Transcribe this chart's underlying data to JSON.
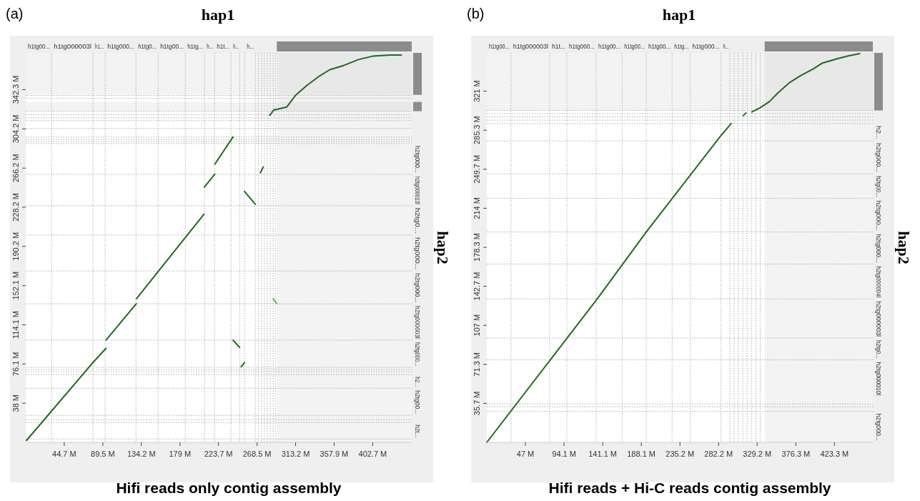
{
  "chart_data": [
    {
      "type": "line",
      "title": "hap1",
      "ylabel": "hap2",
      "subtitle": "Hifi reads only contig assembly",
      "annotations": [
        "(a)",
        "h1tg00..."
      ],
      "xlim": [
        0,
        448
      ],
      "ylim": [
        0,
        378
      ],
      "xticks": [
        {
          "value": 44.7,
          "label": "44.7 M"
        },
        {
          "value": 89.5,
          "label": "89.5 M"
        },
        {
          "value": 134.2,
          "label": "134.2 M"
        },
        {
          "value": 179,
          "label": "179 M"
        },
        {
          "value": 223.7,
          "label": "223.7 M"
        },
        {
          "value": 268.5,
          "label": "268.5 M"
        },
        {
          "value": 313.2,
          "label": "313.2 M"
        },
        {
          "value": 357.9,
          "label": "357.9 M"
        },
        {
          "value": 402.7,
          "label": "402.7 M"
        }
      ],
      "yticks": [
        {
          "value": 38,
          "label": "38 M"
        },
        {
          "value": 76.1,
          "label": "76.1 M"
        },
        {
          "value": 114.1,
          "label": "114.1 M"
        },
        {
          "value": 152.1,
          "label": "152.1 M"
        },
        {
          "value": 190.2,
          "label": "190.2 M"
        },
        {
          "value": 228.2,
          "label": "228.2 M"
        },
        {
          "value": 266.2,
          "label": "266.2 M"
        },
        {
          "value": 304.2,
          "label": "304.2 M"
        },
        {
          "value": 342.3,
          "label": "342.3 M"
        }
      ],
      "series": [
        {
          "color": "#1e6b1e",
          "x": [
            0.9,
            78,
            93.2
          ],
          "values": [
            1.9,
            77.5,
            91.4
          ]
        },
        {
          "color": "#1e6b1e",
          "x": [
            93.2,
            128.4
          ],
          "values": [
            99.2,
            134.7
          ]
        },
        {
          "color": "#1e6b1e",
          "x": [
            128.4,
            206.8
          ],
          "values": [
            139.4,
            221.4
          ]
        },
        {
          "color": "#1e6b1e",
          "x": [
            207.4,
            219.4
          ],
          "values": [
            247.8,
            260.3
          ]
        },
        {
          "color": "#1e6b1e",
          "x": [
            219.4,
            240.6
          ],
          "values": [
            270,
            296.4
          ]
        },
        {
          "color": "#1e6b1e",
          "x": [
            253.9,
            266.5
          ],
          "values": [
            243.6,
            231.1
          ]
        },
        {
          "color": "#1e6b1e",
          "x": [
            272.3,
            275.6
          ],
          "values": [
            261.7,
            267.2
          ]
        },
        {
          "color": "#1e6b1e",
          "x": [
            240.6,
            248.3
          ],
          "values": [
            99.2,
            92.2
          ]
        },
        {
          "color": "#1e6b1e",
          "x": [
            250,
            253.9
          ],
          "values": [
            73.3,
            77.5
          ]
        },
        {
          "color": "#5cbf3c",
          "x": [
            287.1,
            291.4
          ],
          "values": [
            139.4,
            134.7
          ]
        },
        {
          "color": "#1e6b1e",
          "x": [
            283.1,
            288.1,
            289.8,
            303,
            313,
            326.3,
            339.6,
            352.9,
            369.5,
            386,
            402.6,
            422.5,
            435.8
          ],
          "values": [
            317.3,
            322.8,
            322.8,
            325.5,
            336.7,
            346.4,
            354.8,
            361.7,
            365.9,
            371.5,
            374.8,
            376,
            376
          ]
        }
      ],
      "ref_lines": [
        {
          "axis": "x",
          "value": 30,
          "label": "h1tg000003l",
          "line_style": "dotted",
          "color": "#999999"
        },
        {
          "axis": "x",
          "value": 78,
          "label": "h1...",
          "line_style": "dotted",
          "color": "#999999"
        },
        {
          "axis": "x",
          "value": 92.2,
          "label": "h1tg000...",
          "line_style": "dotted",
          "color": "#999999"
        },
        {
          "axis": "x",
          "value": 127.9,
          "label": "h1tg0...",
          "line_style": "dotted",
          "color": "#999999"
        },
        {
          "axis": "x",
          "value": 153.6,
          "label": "h1tg00...",
          "line_style": "dotted",
          "color": "#999999"
        },
        {
          "axis": "x",
          "value": 185.2,
          "label": "h1tg...",
          "line_style": "dotted",
          "color": "#999999"
        },
        {
          "axis": "x",
          "value": 207.6,
          "label": "h...",
          "line_style": "dotted",
          "color": "#999999"
        },
        {
          "axis": "x",
          "value": 219.2,
          "label": "h1t...",
          "line_style": "dotted",
          "color": "#999999"
        },
        {
          "axis": "x",
          "value": 238.3,
          "label": "h...",
          "line_style": "dotted",
          "color": "#999999"
        },
        {
          "axis": "x",
          "value": 248.3,
          "line_style": "dotted",
          "color": "#999999"
        },
        {
          "axis": "x",
          "value": 254,
          "label": "h...",
          "line_style": "dotted",
          "color": "#999999"
        },
        {
          "axis": "x",
          "value": 266.5,
          "line_style": "dotted",
          "color": "#999999"
        },
        {
          "axis": "x",
          "value": 270,
          "line_style": "dotted",
          "color": "#999999"
        },
        {
          "axis": "x",
          "value": 273.8,
          "line_style": "dotted",
          "color": "#999999"
        },
        {
          "axis": "x",
          "value": 277,
          "line_style": "dotted",
          "color": "#999999"
        },
        {
          "axis": "x",
          "value": 280.5,
          "line_style": "dotted",
          "color": "#999999"
        },
        {
          "axis": "x",
          "value": 283.8,
          "line_style": "dotted",
          "color": "#999999"
        },
        {
          "axis": "x",
          "value": 287.1,
          "line_style": "dotted",
          "color": "#999999"
        },
        {
          "axis": "x",
          "value": 289.8,
          "line_style": "dotted",
          "color": "#999999"
        },
        {
          "axis": "y",
          "value": 3.3,
          "label": "h2t...",
          "line_style": "dotted",
          "color": "#999999"
        },
        {
          "axis": "y",
          "value": 19.3,
          "line_style": "dotted",
          "color": "#999999"
        },
        {
          "axis": "y",
          "value": 22,
          "line_style": "dotted",
          "color": "#999999"
        },
        {
          "axis": "y",
          "value": 26.2,
          "label": "h2tg00...",
          "line_style": "dotted",
          "color": "#999999"
        },
        {
          "axis": "y",
          "value": 52.6,
          "label": "h2...",
          "line_style": "dotted",
          "color": "#999999"
        },
        {
          "axis": "y",
          "value": 65.8,
          "line_style": "dotted",
          "color": "#999999"
        },
        {
          "axis": "y",
          "value": 68.6,
          "line_style": "dotted",
          "color": "#999999"
        },
        {
          "axis": "y",
          "value": 70.7,
          "line_style": "dotted",
          "color": "#999999"
        },
        {
          "axis": "y",
          "value": 72.8,
          "label": "h2tg000...",
          "line_style": "dotted",
          "color": "#999999"
        },
        {
          "axis": "y",
          "value": 99.2,
          "label": "h2tg000003l",
          "line_style": "dotted",
          "color": "#999999"
        },
        {
          "axis": "y",
          "value": 134.5,
          "label": "h2tg000...",
          "line_style": "dotted",
          "color": "#999999"
        },
        {
          "axis": "y",
          "value": 166.4,
          "label": "h2tg000...",
          "line_style": "dotted",
          "color": "#999999"
        },
        {
          "axis": "y",
          "value": 201.2,
          "label": "h2tg0...",
          "line_style": "dotted",
          "color": "#999999"
        },
        {
          "axis": "y",
          "value": 229.7,
          "label": "h2tg000013l",
          "line_style": "dotted",
          "color": "#999999"
        },
        {
          "axis": "y",
          "value": 260.1,
          "label": "h2tg000...",
          "line_style": "dotted",
          "color": "#999999"
        },
        {
          "axis": "y",
          "value": 290,
          "line_style": "dotted",
          "color": "#999999"
        },
        {
          "axis": "y",
          "value": 292,
          "line_style": "dotted",
          "color": "#999999"
        },
        {
          "axis": "y",
          "value": 294,
          "line_style": "dotted",
          "color": "#999999"
        },
        {
          "axis": "y",
          "value": 296.3,
          "line_style": "dotted",
          "color": "#999999"
        },
        {
          "axis": "y",
          "value": 304.7,
          "line_style": "dotted",
          "color": "#999999"
        },
        {
          "axis": "y",
          "value": 312.3,
          "line_style": "dotted",
          "color": "#999999"
        },
        {
          "axis": "y",
          "value": 315,
          "line_style": "dotted",
          "color": "#999999"
        },
        {
          "axis": "y",
          "value": 318,
          "line_style": "dotted",
          "color": "#999999"
        },
        {
          "axis": "y",
          "value": 321.4,
          "line_style": "dotted",
          "color": "#999999"
        },
        {
          "axis": "y",
          "value": 333.9,
          "line_style": "dotted",
          "color": "#999999"
        },
        {
          "axis": "y",
          "value": 336.7,
          "line_style": "dotted",
          "color": "#999999"
        }
      ],
      "bands": [
        {
          "axis": "x",
          "from": 291.4,
          "to": 448,
          "color": "#8c8c8c"
        },
        {
          "axis": "y",
          "from": 337.3,
          "to": 378,
          "color": "#8c8c8c"
        },
        {
          "axis": "y",
          "from": 321.4,
          "to": 330.4,
          "color": "#8c8c8c"
        }
      ]
    },
    {
      "type": "line",
      "title": "hap1",
      "ylabel": "hap2",
      "subtitle": "Hifi reads + Hi-C reads contig assembly",
      "annotations": [
        "(b)",
        "h1tg00...",
        "h2tg000..."
      ],
      "xlim": [
        0,
        470
      ],
      "ylim": [
        0,
        356
      ],
      "xticks": [
        {
          "value": 47,
          "label": "47 M"
        },
        {
          "value": 94.1,
          "label": "94.1 M"
        },
        {
          "value": 141.1,
          "label": "141.1 M"
        },
        {
          "value": 188.1,
          "label": "188.1 M"
        },
        {
          "value": 235.2,
          "label": "235.2 M"
        },
        {
          "value": 282.2,
          "label": "282.2 M"
        },
        {
          "value": 329.2,
          "label": "329.2 M"
        },
        {
          "value": 376.3,
          "label": "376.3 M"
        },
        {
          "value": 423.3,
          "label": "423.3 M"
        }
      ],
      "yticks": [
        {
          "value": 35.7,
          "label": "35.7 M"
        },
        {
          "value": 71.3,
          "label": "71.3 M"
        },
        {
          "value": 107,
          "label": "107 M"
        },
        {
          "value": 142.7,
          "label": "142.7 M"
        },
        {
          "value": 178.3,
          "label": "178.3 M"
        },
        {
          "value": 214,
          "label": "214 M"
        },
        {
          "value": 249.7,
          "label": "249.7 M"
        },
        {
          "value": 285.3,
          "label": "285.3 M"
        },
        {
          "value": 321,
          "label": "321 M"
        }
      ],
      "series": [
        {
          "color": "#1e6b1e",
          "x": [
            0,
            134.5,
            194.1,
            285.1,
            297.6
          ],
          "values": [
            0,
            131.2,
            192.3,
            280.5,
            291.4
          ]
        },
        {
          "color": "#1e6b1e",
          "x": [
            312.2,
            315.7
          ],
          "values": [
            298.6,
            301.2
          ]
        },
        {
          "color": "#1e6b1e",
          "x": [
            322.8,
            333.4,
            344.1,
            354.7,
            368.9,
            383.1,
            397.2,
            408,
            425.7,
            439.9,
            454.1
          ],
          "values": [
            302,
            306.1,
            311.5,
            319.6,
            329,
            335.7,
            341.2,
            346.5,
            350.5,
            353.2,
            355.4
          ]
        }
      ],
      "ref_lines": [
        {
          "axis": "x",
          "value": 29.4,
          "label": "h1tg000003l",
          "line_style": "dotted",
          "color": "#999999"
        },
        {
          "axis": "x",
          "value": 76.5,
          "label": "h1t...",
          "line_style": "dotted",
          "color": "#999999"
        },
        {
          "axis": "x",
          "value": 97.4,
          "label": "h1tg000...",
          "line_style": "dotted",
          "color": "#999999"
        },
        {
          "axis": "x",
          "value": 133.2,
          "label": "h1tg00...",
          "line_style": "dotted",
          "color": "#999999"
        },
        {
          "axis": "x",
          "value": 164.7,
          "label": "h1tg00...",
          "line_style": "dotted",
          "color": "#999999"
        },
        {
          "axis": "x",
          "value": 194.1,
          "label": "h1tg00...",
          "line_style": "dotted",
          "color": "#999999"
        },
        {
          "axis": "x",
          "value": 225.6,
          "label": "h1tg...",
          "line_style": "dotted",
          "color": "#999999"
        },
        {
          "axis": "x",
          "value": 247.6,
          "label": "h1tg000...",
          "line_style": "dotted",
          "color": "#999999"
        },
        {
          "axis": "x",
          "value": 285.1,
          "label": "h...",
          "line_style": "dotted",
          "color": "#999999"
        },
        {
          "axis": "x",
          "value": 295.8,
          "line_style": "dotted",
          "color": "#999999"
        },
        {
          "axis": "x",
          "value": 301.1,
          "line_style": "dotted",
          "color": "#999999"
        },
        {
          "axis": "x",
          "value": 306.2,
          "line_style": "dotted",
          "color": "#999999"
        },
        {
          "axis": "x",
          "value": 311.7,
          "line_style": "dotted",
          "color": "#999999"
        },
        {
          "axis": "x",
          "value": 317,
          "line_style": "dotted",
          "color": "#999999"
        },
        {
          "axis": "x",
          "value": 322.3,
          "line_style": "dotted",
          "color": "#999999"
        },
        {
          "axis": "x",
          "value": 327.7,
          "line_style": "dotted",
          "color": "#999999"
        },
        {
          "axis": "x",
          "value": 332.9,
          "line_style": "dotted",
          "color": "#999999"
        },
        {
          "axis": "y",
          "value": 28.4,
          "line_style": "dotted",
          "color": "#999999"
        },
        {
          "axis": "y",
          "value": 32.5,
          "line_style": "dotted",
          "color": "#999999"
        },
        {
          "axis": "y",
          "value": 35.1,
          "label": "h2tg000010l",
          "line_style": "dotted",
          "color": "#999999"
        },
        {
          "axis": "y",
          "value": 75.5,
          "label": "h2tg0...",
          "line_style": "dotted",
          "color": "#999999"
        },
        {
          "axis": "y",
          "value": 95.4,
          "label": "h2tg000003l",
          "line_style": "dotted",
          "color": "#999999"
        },
        {
          "axis": "y",
          "value": 131.2,
          "label": "h2tg000004l",
          "line_style": "dotted",
          "color": "#999999"
        },
        {
          "axis": "y",
          "value": 163,
          "label": "h2tg000...",
          "line_style": "dotted",
          "color": "#999999"
        },
        {
          "axis": "y",
          "value": 192.3,
          "label": "h2tg000...",
          "line_style": "dotted",
          "color": "#999999"
        },
        {
          "axis": "y",
          "value": 223.1,
          "label": "h2tg00...",
          "line_style": "dotted",
          "color": "#999999"
        },
        {
          "axis": "y",
          "value": 245.5,
          "label": "h2tg000...",
          "line_style": "dotted",
          "color": "#999999"
        },
        {
          "axis": "y",
          "value": 275.6,
          "label": "h2...",
          "line_style": "dotted",
          "color": "#999999"
        },
        {
          "axis": "y",
          "value": 291.4,
          "line_style": "dotted",
          "color": "#999999"
        },
        {
          "axis": "y",
          "value": 294.5,
          "line_style": "dotted",
          "color": "#999999"
        },
        {
          "axis": "y",
          "value": 297.5,
          "line_style": "dotted",
          "color": "#999999"
        },
        {
          "axis": "y",
          "value": 300.5,
          "line_style": "dotted",
          "color": "#999999"
        },
        {
          "axis": "y",
          "value": 303.4,
          "line_style": "dotted",
          "color": "#999999"
        }
      ],
      "bands": [
        {
          "axis": "x",
          "from": 338.3,
          "to": 470,
          "color": "#8c8c8c"
        },
        {
          "axis": "y",
          "from": 303.4,
          "to": 356,
          "color": "#8c8c8c"
        }
      ]
    }
  ]
}
